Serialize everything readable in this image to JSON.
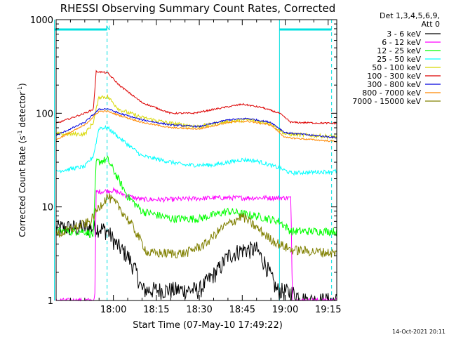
{
  "chart_data": {
    "type": "line",
    "title": "RHESSI Observing Summary Count Rates, Corrected",
    "xlabel": "Start Time (07-May-10 17:49:22)",
    "ylabel_main": "Corrected Count Rate (s",
    "ylabel_sup1": "-1",
    "ylabel_mid": " detector",
    "ylabel_sup2": "-1",
    "ylabel_end": ")",
    "yscale": "log",
    "ylim": [
      1,
      1000
    ],
    "xlim_min": [
      -10,
      88
    ],
    "x_ticks": [
      {
        "m": 10,
        "label": "18:00"
      },
      {
        "m": 25,
        "label": "18:15"
      },
      {
        "m": 40,
        "label": "18:30"
      },
      {
        "m": 55,
        "label": "18:45"
      },
      {
        "m": 70,
        "label": "19:00"
      },
      {
        "m": 85,
        "label": "19:15"
      }
    ],
    "y_ticks": [
      {
        "v": 1,
        "label": "1"
      },
      {
        "v": 10,
        "label": "10"
      },
      {
        "v": 100,
        "label": "100"
      },
      {
        "v": 1000,
        "label": "1000"
      }
    ],
    "legend_header": [
      "Det 1,3,4,5,6,9,",
      "Att 0"
    ],
    "annotation_n": "N",
    "timestamp": "14-Oct-2021 20:11",
    "night_markers": [
      {
        "type": "line",
        "m": -10.6
      },
      {
        "type": "bar",
        "from": -10.6,
        "to": 7.8
      },
      {
        "type": "dash",
        "m": 7.8
      },
      {
        "type": "line",
        "m": 68.0
      },
      {
        "type": "bar",
        "from": 68.0,
        "to": 86.2
      },
      {
        "type": "dash",
        "m": 86.2
      }
    ],
    "series": [
      {
        "name": "3 - 6 keV",
        "color": "#000000",
        "noise": 0.22,
        "points": [
          [
            -10,
            6
          ],
          [
            5,
            6
          ],
          [
            8,
            5.5
          ],
          [
            11,
            4
          ],
          [
            15,
            3
          ],
          [
            18,
            2
          ],
          [
            20,
            1.3
          ],
          [
            40,
            1.3
          ],
          [
            47,
            2.2
          ],
          [
            50,
            3
          ],
          [
            55,
            3.5
          ],
          [
            60,
            3.5
          ],
          [
            63,
            2.5
          ],
          [
            67,
            1.3
          ],
          [
            73,
            1.2
          ],
          [
            77,
            1
          ]
        ]
      },
      {
        "name": "6 - 12 keV",
        "color": "#ff00ff",
        "noise": 0.06,
        "points": [
          [
            3.5,
            1
          ],
          [
            4,
            14.5
          ],
          [
            10,
            15
          ],
          [
            15,
            13
          ],
          [
            20,
            12
          ],
          [
            30,
            12
          ],
          [
            45,
            12.5
          ],
          [
            60,
            12.5
          ],
          [
            72,
            12.5
          ],
          [
            72.5,
            1
          ],
          [
            88,
            1
          ]
        ]
      },
      {
        "name": "12 - 25 keV",
        "color": "#00ff00",
        "noise": 0.1,
        "points": [
          [
            -10,
            5.5
          ],
          [
            0,
            5.5
          ],
          [
            3,
            5
          ],
          [
            4,
            30
          ],
          [
            8,
            32
          ],
          [
            15,
            13
          ],
          [
            20,
            9
          ],
          [
            30,
            7.5
          ],
          [
            40,
            7.5
          ],
          [
            50,
            9
          ],
          [
            60,
            8
          ],
          [
            68,
            7
          ],
          [
            72,
            5.5
          ],
          [
            88,
            5.5
          ]
        ]
      },
      {
        "name": "25 - 50 keV",
        "color": "#00ffff",
        "noise": 0.05,
        "points": [
          [
            -10,
            24
          ],
          [
            0,
            27
          ],
          [
            3,
            35
          ],
          [
            5,
            70
          ],
          [
            8,
            70
          ],
          [
            12,
            55
          ],
          [
            20,
            35
          ],
          [
            35,
            28
          ],
          [
            45,
            28
          ],
          [
            55,
            32
          ],
          [
            60,
            31
          ],
          [
            68,
            26
          ],
          [
            72,
            23
          ],
          [
            88,
            24
          ]
        ]
      },
      {
        "name": "50 - 100 keV",
        "color": "#d8d800",
        "noise": 0.05,
        "points": [
          [
            -10,
            60
          ],
          [
            0,
            60
          ],
          [
            3,
            80
          ],
          [
            5,
            150
          ],
          [
            8,
            150
          ],
          [
            12,
            110
          ],
          [
            20,
            90
          ],
          [
            30,
            78
          ],
          [
            40,
            72
          ],
          [
            50,
            82
          ],
          [
            57,
            85
          ],
          [
            65,
            78
          ],
          [
            70,
            60
          ],
          [
            88,
            56
          ]
        ]
      },
      {
        "name": "100 - 300 keV",
        "color": "#dd0000",
        "noise": 0.02,
        "points": [
          [
            -10,
            78
          ],
          [
            0,
            100
          ],
          [
            3,
            110
          ],
          [
            4,
            280
          ],
          [
            8,
            270
          ],
          [
            12,
            200
          ],
          [
            20,
            130
          ],
          [
            30,
            100
          ],
          [
            38,
            100
          ],
          [
            45,
            110
          ],
          [
            55,
            125
          ],
          [
            62,
            115
          ],
          [
            68,
            100
          ],
          [
            72,
            80
          ],
          [
            88,
            78
          ]
        ]
      },
      {
        "name": "300 - 800 keV",
        "color": "#0000dd",
        "noise": 0.02,
        "points": [
          [
            -10,
            58
          ],
          [
            0,
            80
          ],
          [
            5,
            110
          ],
          [
            8,
            112
          ],
          [
            12,
            100
          ],
          [
            20,
            85
          ],
          [
            30,
            75
          ],
          [
            40,
            72
          ],
          [
            50,
            85
          ],
          [
            57,
            88
          ],
          [
            65,
            80
          ],
          [
            70,
            62
          ],
          [
            88,
            55
          ]
        ]
      },
      {
        "name": "800 - 7000 keV",
        "color": "#ff8800",
        "noise": 0.02,
        "points": [
          [
            -10,
            52
          ],
          [
            0,
            75
          ],
          [
            5,
            105
          ],
          [
            8,
            105
          ],
          [
            12,
            95
          ],
          [
            20,
            80
          ],
          [
            30,
            70
          ],
          [
            40,
            68
          ],
          [
            50,
            80
          ],
          [
            57,
            82
          ],
          [
            65,
            75
          ],
          [
            70,
            55
          ],
          [
            88,
            50
          ]
        ]
      },
      {
        "name": "7000 - 15000 keV",
        "color": "#808000",
        "noise": 0.12,
        "points": [
          [
            -10,
            5
          ],
          [
            2,
            7
          ],
          [
            5,
            10
          ],
          [
            8,
            13
          ],
          [
            12,
            10
          ],
          [
            17,
            6
          ],
          [
            22,
            3.2
          ],
          [
            35,
            3.2
          ],
          [
            42,
            4
          ],
          [
            48,
            6
          ],
          [
            55,
            8
          ],
          [
            60,
            6
          ],
          [
            65,
            4.5
          ],
          [
            68,
            4
          ],
          [
            72,
            3.5
          ],
          [
            88,
            3.2
          ]
        ]
      }
    ]
  }
}
